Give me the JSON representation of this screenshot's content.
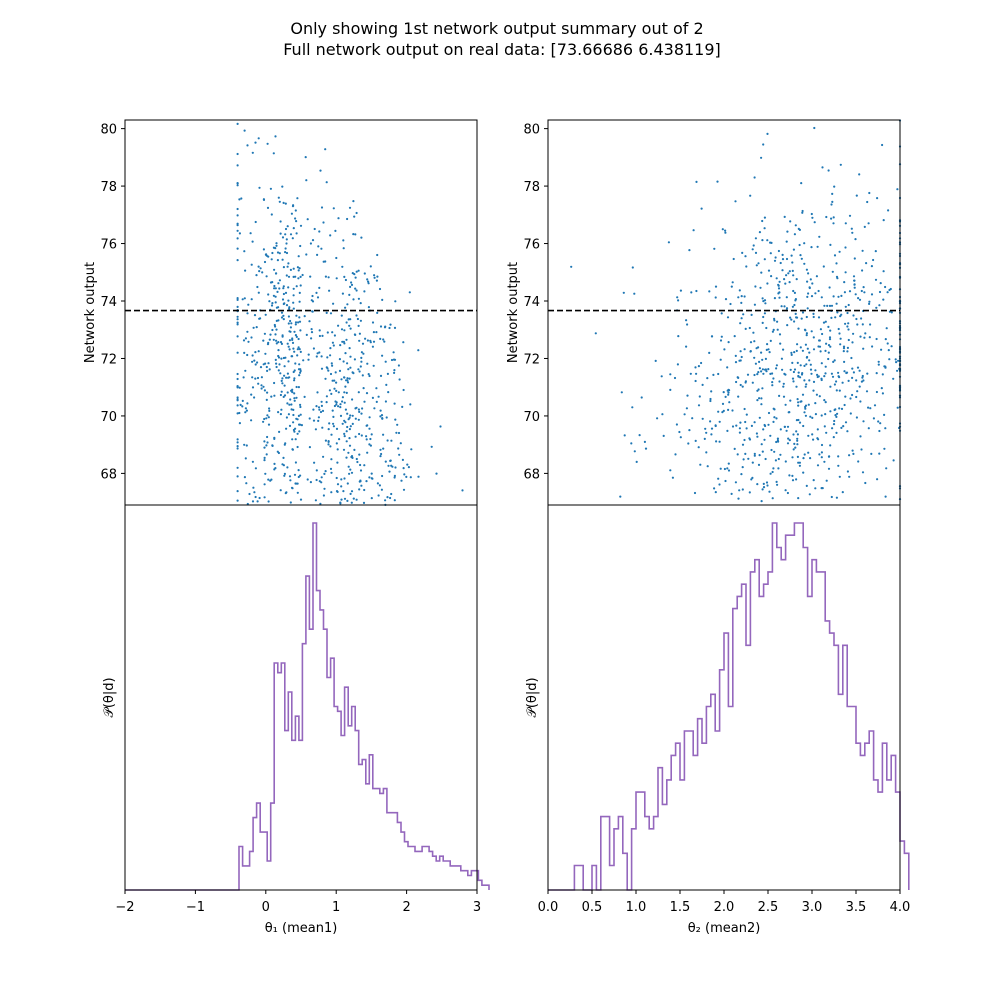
{
  "figure": {
    "title_line1": "Only showing 1st network output summary out of 2",
    "title_line2": "Full network output on real data: [73.66686   6.438119]"
  },
  "colors": {
    "scatter": "#1f77b4",
    "histogram": "#9467bd",
    "reference_line": "#000000"
  },
  "chart_data": [
    {
      "type": "scatter",
      "panel": "top-left",
      "xlabel": "",
      "ylabel": "Network output",
      "xlim": [
        -2,
        3
      ],
      "ylim": [
        66.9,
        80.3
      ],
      "yticks": [
        68,
        70,
        72,
        74,
        76,
        78,
        80
      ],
      "hline": 73.66686,
      "hline_style": "dashed",
      "n_points": 1000,
      "x_center": 0.5,
      "x_spread": 0.55,
      "x_min": -0.4,
      "x_max": 3.0,
      "y_center": 71.5,
      "y_spread": 3.2,
      "trend": "negative"
    },
    {
      "type": "scatter",
      "panel": "top-right",
      "xlabel": "",
      "ylabel": "Network output",
      "xlim": [
        0.0,
        4.0
      ],
      "ylim": [
        66.9,
        80.3
      ],
      "yticks": [
        68,
        70,
        72,
        74,
        76,
        78,
        80
      ],
      "hline": 73.66686,
      "hline_style": "dashed",
      "n_points": 1000,
      "x_center": 2.8,
      "x_spread": 0.75,
      "x_min": 0.0,
      "x_max": 4.0,
      "y_center": 71.5,
      "y_spread": 3.2,
      "trend": "positive"
    },
    {
      "type": "histogram",
      "panel": "bottom-left",
      "xlabel": "θ₁ (mean1)",
      "ylabel": "𝒫(θ|d)",
      "xlim": [
        -2,
        3
      ],
      "xticks": [
        -2,
        -1,
        0,
        1,
        2,
        3
      ],
      "xticklabels": [
        "−2",
        "−1",
        "0",
        "1",
        "2",
        "3"
      ],
      "bin_start": -0.38,
      "bin_width": 0.05,
      "counts": [
        9,
        5,
        5,
        8,
        15,
        18,
        12,
        12,
        6,
        18,
        47,
        45,
        47,
        33,
        41,
        31,
        36,
        31,
        51,
        65,
        54,
        76,
        62,
        58,
        54,
        44,
        48,
        38,
        37,
        32,
        42,
        34,
        38,
        33,
        26,
        27,
        22,
        28,
        21,
        21,
        20,
        21,
        16,
        16,
        16,
        14,
        12,
        10,
        9,
        9,
        8,
        8,
        9,
        9,
        8,
        7,
        6,
        7,
        6,
        6,
        5,
        5,
        5,
        4,
        4,
        3,
        4,
        4,
        2,
        1,
        1
      ]
    },
    {
      "type": "histogram",
      "panel": "bottom-right",
      "xlabel": "θ₂ (mean2)",
      "ylabel": "𝒫(θ|d)",
      "xlim": [
        0.0,
        4.0
      ],
      "xticks": [
        0.0,
        0.5,
        1.0,
        1.5,
        2.0,
        2.5,
        3.0,
        3.5,
        4.0
      ],
      "xticklabels": [
        "0.0",
        "0.5",
        "1.0",
        "1.5",
        "2.0",
        "2.5",
        "3.0",
        "3.5",
        "4.0"
      ],
      "bin_start": 0.0,
      "bin_width": 0.05,
      "counts": [
        0,
        0,
        0,
        0,
        0,
        0,
        2,
        2,
        0,
        0,
        2,
        0,
        6,
        6,
        2,
        5,
        6,
        3,
        0,
        5,
        8,
        8,
        6,
        5,
        6,
        10,
        7,
        9,
        11,
        12,
        9,
        13,
        13,
        11,
        14,
        12,
        15,
        16,
        13,
        18,
        21,
        15,
        23,
        24,
        25,
        20,
        26,
        27,
        24,
        25,
        26,
        30,
        28,
        27,
        29,
        29,
        30,
        30,
        28,
        24,
        27,
        26,
        26,
        22,
        21,
        20,
        16,
        20,
        15,
        15,
        12,
        11,
        12,
        13,
        9,
        8,
        12,
        9,
        11,
        8,
        4,
        3
      ]
    }
  ]
}
